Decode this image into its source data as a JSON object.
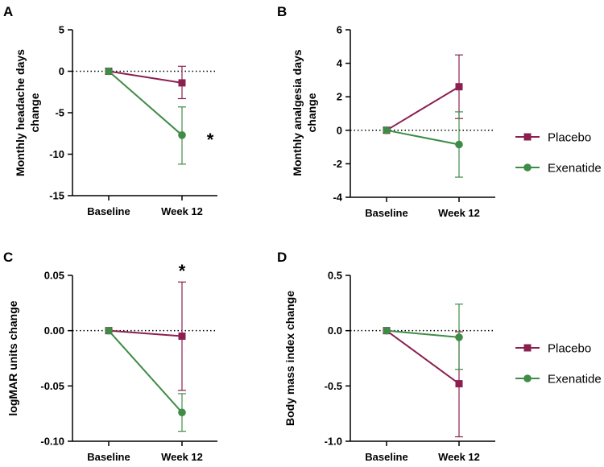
{
  "colors": {
    "placebo": "#8b2050",
    "exenatide": "#3f8c46",
    "axis": "#000000",
    "zero_line": "#000000"
  },
  "legend": {
    "items": [
      {
        "label": "Placebo",
        "series": "placebo"
      },
      {
        "label": "Exenatide",
        "series": "exenatide"
      }
    ]
  },
  "chart_data": [
    {
      "type": "line",
      "panel": "A",
      "ylabel_lines": [
        "Monthly headache days",
        "change"
      ],
      "categories": [
        "Baseline",
        "Week 12"
      ],
      "ylim": [
        -15,
        5
      ],
      "yticks": [
        5,
        0,
        -5,
        -10,
        -15
      ],
      "ytick_labels": [
        "5",
        "0",
        "-5",
        "-10",
        "-15"
      ],
      "zero_line": true,
      "series": [
        {
          "name": "Placebo",
          "key": "placebo",
          "marker": "square",
          "values": [
            0,
            -1.4
          ],
          "err_lo": [
            0,
            -3.3
          ],
          "err_hi": [
            0,
            0.6
          ]
        },
        {
          "name": "Exenatide",
          "key": "exenatide",
          "marker": "circle",
          "values": [
            0,
            -7.7
          ],
          "err_lo": [
            0,
            -11.2
          ],
          "err_hi": [
            0,
            -4.3
          ]
        }
      ],
      "annotations": [
        {
          "text": "*",
          "category": 1,
          "y": -7.7,
          "placement": "right"
        }
      ]
    },
    {
      "type": "line",
      "panel": "B",
      "ylabel_lines": [
        "Monthly analgesia days",
        "change"
      ],
      "categories": [
        "Baseline",
        "Week 12"
      ],
      "ylim": [
        -4,
        6
      ],
      "yticks": [
        6,
        4,
        2,
        0,
        -2,
        -4
      ],
      "ytick_labels": [
        "6",
        "4",
        "2",
        "0",
        "-2",
        "-4"
      ],
      "zero_line": true,
      "series": [
        {
          "name": "Placebo",
          "key": "placebo",
          "marker": "square",
          "values": [
            0,
            2.6
          ],
          "err_lo": [
            0,
            0.7
          ],
          "err_hi": [
            0,
            4.5
          ]
        },
        {
          "name": "Exenatide",
          "key": "exenatide",
          "marker": "circle",
          "values": [
            0,
            -0.85
          ],
          "err_lo": [
            0,
            -2.8
          ],
          "err_hi": [
            0,
            1.1
          ]
        }
      ],
      "annotations": []
    },
    {
      "type": "line",
      "panel": "C",
      "ylabel_lines": [
        "logMAR units change"
      ],
      "categories": [
        "Baseline",
        "Week 12"
      ],
      "ylim": [
        -0.1,
        0.05
      ],
      "yticks": [
        0.05,
        0,
        -0.05,
        -0.1
      ],
      "ytick_labels": [
        "0.05",
        "0.00",
        "-0.05",
        "-0.10"
      ],
      "zero_line": true,
      "series": [
        {
          "name": "Placebo",
          "key": "placebo",
          "marker": "square",
          "values": [
            0,
            -0.005
          ],
          "err_lo": [
            0,
            -0.054
          ],
          "err_hi": [
            0,
            0.044
          ]
        },
        {
          "name": "Exenatide",
          "key": "exenatide",
          "marker": "circle",
          "values": [
            0,
            -0.074
          ],
          "err_lo": [
            0,
            -0.091
          ],
          "err_hi": [
            0,
            -0.057
          ]
        }
      ],
      "annotations": [
        {
          "text": "*",
          "category": 1,
          "y": 0.044,
          "placement": "above"
        }
      ]
    },
    {
      "type": "line",
      "panel": "D",
      "ylabel_lines": [
        "Body mass index change"
      ],
      "categories": [
        "Baseline",
        "Week 12"
      ],
      "ylim": [
        -1.0,
        0.5
      ],
      "yticks": [
        0.5,
        0,
        -0.5,
        -1.0
      ],
      "ytick_labels": [
        "0.5",
        "0.0",
        "-0.5",
        "-1.0"
      ],
      "zero_line": true,
      "series": [
        {
          "name": "Placebo",
          "key": "placebo",
          "marker": "square",
          "values": [
            0,
            -0.48
          ],
          "err_lo": [
            0,
            -0.96
          ],
          "err_hi": [
            0,
            -0.01
          ]
        },
        {
          "name": "Exenatide",
          "key": "exenatide",
          "marker": "circle",
          "values": [
            0,
            -0.06
          ],
          "err_lo": [
            0,
            -0.35
          ],
          "err_hi": [
            0,
            0.24
          ]
        }
      ],
      "annotations": []
    }
  ]
}
